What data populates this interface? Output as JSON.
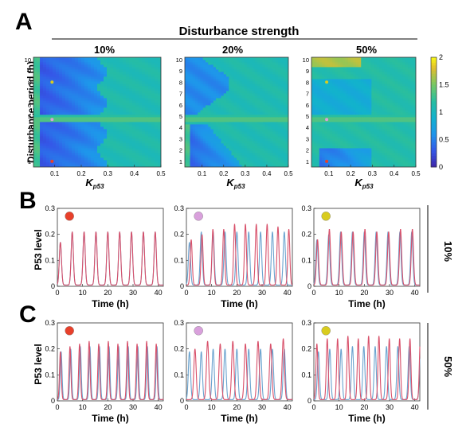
{
  "figure": {
    "panel_labels": [
      "A",
      "B",
      "C"
    ],
    "header": "Disturbance strength",
    "colorbar": {
      "ticks": [
        "2",
        "1.5",
        "1",
        "0.5",
        "0"
      ],
      "range": [
        0,
        2
      ]
    },
    "colors": {
      "red_marker": "#e8402b",
      "purple_marker": "#d9a0dc",
      "yellow_marker": "#d9cc1e",
      "blue_trace": "#6aa3cf",
      "red_trace": "#d8506a"
    }
  },
  "chart_data": [
    {
      "type": "heatmap",
      "title": "10%",
      "xlabel": "K",
      "xlabel_sub": "p53",
      "ylabel": "Disturbance period (h)",
      "x_ticks": [
        "0.1",
        "0.2",
        "0.3",
        "0.4",
        "0.5"
      ],
      "y_ticks": [
        "1",
        "2",
        "3",
        "4",
        "5",
        "6",
        "7",
        "8",
        "9",
        "10"
      ],
      "xlim": [
        0.02,
        0.5
      ],
      "ylim": [
        0.5,
        10.2
      ],
      "markers": [
        {
          "color": "red",
          "x": 0.09,
          "y": 1.0
        },
        {
          "color": "purple",
          "x": 0.09,
          "y": 4.7
        },
        {
          "color": "yellow",
          "x": 0.09,
          "y": 8.0
        }
      ]
    },
    {
      "type": "heatmap",
      "title": "20%",
      "xlabel": "K",
      "xlabel_sub": "p53",
      "x_ticks": [
        "0.1",
        "0.2",
        "0.3",
        "0.4",
        "0.5"
      ],
      "y_ticks": [
        "1",
        "2",
        "3",
        "4",
        "5",
        "6",
        "7",
        "8",
        "9",
        "10"
      ],
      "xlim": [
        0.02,
        0.5
      ],
      "ylim": [
        0.5,
        10.2
      ]
    },
    {
      "type": "heatmap",
      "title": "50%",
      "xlabel": "K",
      "xlabel_sub": "p53",
      "x_ticks": [
        "0.1",
        "0.2",
        "0.3",
        "0.4",
        "0.5"
      ],
      "y_ticks": [
        "1",
        "2",
        "3",
        "4",
        "5",
        "6",
        "7",
        "8",
        "9",
        "10"
      ],
      "xlim": [
        0.02,
        0.5
      ],
      "ylim": [
        0.5,
        10.2
      ],
      "markers": [
        {
          "color": "red",
          "x": 0.09,
          "y": 1.0
        },
        {
          "color": "purple",
          "x": 0.09,
          "y": 4.7
        },
        {
          "color": "yellow",
          "x": 0.09,
          "y": 8.0
        }
      ]
    },
    {
      "type": "line",
      "row": "B",
      "strength": "10%",
      "marker": "red",
      "ylabel": "P53 level",
      "xlabel": "Time (h)",
      "xlim": [
        0,
        42
      ],
      "ylim": [
        0,
        0.3
      ],
      "x_ticks": [
        "0",
        "10",
        "20",
        "30",
        "40"
      ],
      "y_ticks": [
        "0",
        "0.1",
        "0.2",
        "0.3"
      ],
      "series": [
        {
          "color": "blue",
          "period": 4.7,
          "peaks": [
            0.17,
            0.21,
            0.21,
            0.21,
            0.21,
            0.21,
            0.21,
            0.21,
            0.21
          ]
        },
        {
          "color": "red",
          "period": 4.7,
          "peaks": [
            0.17,
            0.21,
            0.21,
            0.21,
            0.21,
            0.21,
            0.21,
            0.21,
            0.21
          ]
        }
      ]
    },
    {
      "type": "line",
      "row": "B",
      "strength": "10%",
      "marker": "purple",
      "xlabel": "Time (h)",
      "xlim": [
        0,
        42
      ],
      "ylim": [
        0,
        0.3
      ],
      "x_ticks": [
        "0",
        "10",
        "20",
        "30",
        "40"
      ],
      "y_ticks": [
        "0",
        "0.1",
        "0.2",
        "0.3"
      ],
      "series": [
        {
          "color": "blue",
          "period": 4.7,
          "peaks": [
            0.17,
            0.21,
            0.21,
            0.21,
            0.21,
            0.21,
            0.21,
            0.21,
            0.21
          ]
        },
        {
          "color": "red",
          "period": 4.3,
          "peaks": [
            0.18,
            0.2,
            0.22,
            0.22,
            0.24,
            0.24,
            0.24,
            0.24,
            0.23,
            0.22
          ]
        }
      ]
    },
    {
      "type": "line",
      "row": "B",
      "strength": "10%",
      "marker": "yellow",
      "xlabel": "Time (h)",
      "xlim": [
        0,
        42
      ],
      "ylim": [
        0,
        0.3
      ],
      "x_ticks": [
        "0",
        "10",
        "20",
        "30",
        "40"
      ],
      "y_ticks": [
        "0",
        "0.1",
        "0.2",
        "0.3"
      ],
      "series": [
        {
          "color": "blue",
          "period": 4.7,
          "peaks": [
            0.18,
            0.2,
            0.21,
            0.21,
            0.21,
            0.21,
            0.21,
            0.21,
            0.21
          ]
        },
        {
          "color": "red",
          "period": 4.7,
          "peaks": [
            0.18,
            0.22,
            0.21,
            0.21,
            0.22,
            0.21,
            0.21,
            0.22,
            0.22
          ]
        }
      ]
    },
    {
      "type": "line",
      "row": "C",
      "strength": "50%",
      "marker": "red",
      "ylabel": "P53 level",
      "xlabel": "Time (h)",
      "xlim": [
        0,
        42
      ],
      "ylim": [
        0,
        0.3
      ],
      "x_ticks": [
        "0",
        "10",
        "20",
        "30",
        "40"
      ],
      "y_ticks": [
        "0",
        "0.1",
        "0.2",
        "0.3"
      ],
      "series": [
        {
          "color": "blue",
          "period": 3.8,
          "peaks": [
            0.19,
            0.2,
            0.21,
            0.21,
            0.21,
            0.21,
            0.21,
            0.21,
            0.21,
            0.21,
            0.21
          ]
        },
        {
          "color": "red",
          "period": 3.8,
          "peaks": [
            0.19,
            0.21,
            0.22,
            0.23,
            0.22,
            0.23,
            0.22,
            0.23,
            0.22,
            0.23,
            0.22
          ]
        }
      ]
    },
    {
      "type": "line",
      "row": "C",
      "strength": "50%",
      "marker": "purple",
      "xlabel": "Time (h)",
      "xlim": [
        0,
        42
      ],
      "ylim": [
        0,
        0.3
      ],
      "x_ticks": [
        "0",
        "10",
        "20",
        "30",
        "40"
      ],
      "y_ticks": [
        "0",
        "0.1",
        "0.2",
        "0.3"
      ],
      "series": [
        {
          "color": "blue",
          "period": 4.7,
          "peaks": [
            0.19,
            0.19,
            0.2,
            0.2,
            0.2,
            0.2,
            0.2,
            0.2,
            0.2
          ]
        },
        {
          "color": "red",
          "period": 5.0,
          "peaks": [
            0.2,
            0.23,
            0.22,
            0.23,
            0.22,
            0.23,
            0.22,
            0.24
          ]
        }
      ]
    },
    {
      "type": "line",
      "row": "C",
      "strength": "50%",
      "marker": "yellow",
      "xlabel": "Time (h)",
      "xlim": [
        0,
        42
      ],
      "ylim": [
        0,
        0.3
      ],
      "x_ticks": [
        "0",
        "10",
        "20",
        "30",
        "40"
      ],
      "y_ticks": [
        "0",
        "0.1",
        "0.2",
        "0.3"
      ],
      "series": [
        {
          "color": "blue",
          "period": 4.5,
          "peaks": [
            0.19,
            0.2,
            0.2,
            0.21,
            0.21,
            0.21,
            0.21,
            0.21,
            0.21
          ]
        },
        {
          "color": "red",
          "period": 4.1,
          "peaks": [
            0.22,
            0.24,
            0.24,
            0.25,
            0.24,
            0.25,
            0.25,
            0.24,
            0.24,
            0.24
          ]
        }
      ]
    }
  ],
  "row_labels": {
    "B": "10%",
    "C": "50%"
  }
}
